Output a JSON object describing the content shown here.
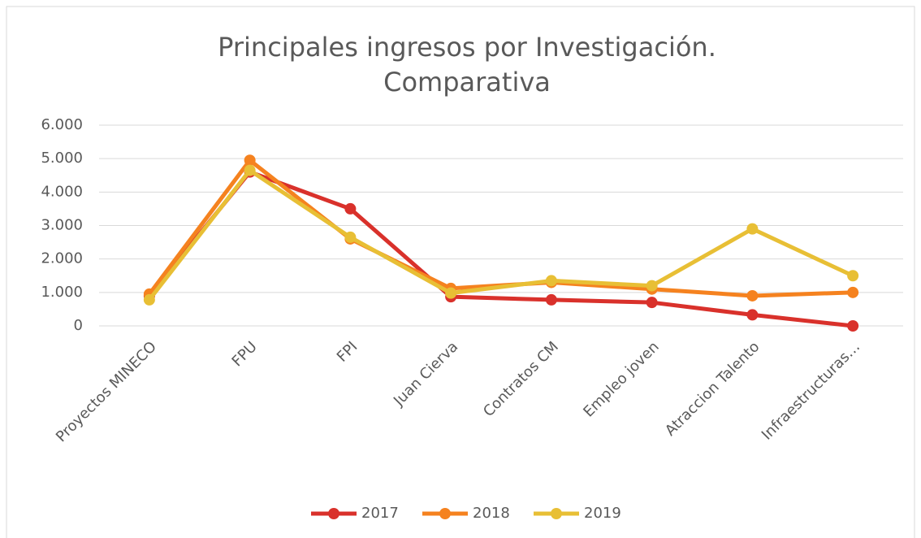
{
  "chart_data": {
    "type": "line",
    "title": [
      "Principales ingresos por Investigación.",
      "Comparativa"
    ],
    "categories": [
      "Proyectos MINECO",
      "FPU",
      "FPI",
      "Juan Cierva",
      "Contratos CM",
      "Empleo joven",
      "Atraccion Talento",
      "Infraestructuras…"
    ],
    "series": [
      {
        "name": "2017",
        "color": "#d9312b",
        "values": [
          900,
          4600,
          3500,
          870,
          780,
          700,
          330,
          0
        ]
      },
      {
        "name": "2018",
        "color": "#f5821f",
        "values": [
          950,
          4950,
          2600,
          1120,
          1300,
          1100,
          900,
          1000
        ]
      },
      {
        "name": "2019",
        "color": "#e8bf35",
        "values": [
          780,
          4650,
          2650,
          980,
          1350,
          1200,
          2900,
          1500
        ]
      }
    ],
    "ylim": [
      0,
      6000
    ],
    "yticks": [
      0,
      {
        "value": 1000,
        "label": "1.000"
      },
      {
        "value": 2000,
        "label": "2.000"
      },
      {
        "value": 3000,
        "label": "3.000"
      },
      {
        "value": 4000,
        "label": "4.000"
      },
      {
        "value": 5000,
        "label": "5.000"
      },
      {
        "value": 6000,
        "label": "6.000"
      }
    ],
    "grid": true,
    "legend": "bottom"
  }
}
